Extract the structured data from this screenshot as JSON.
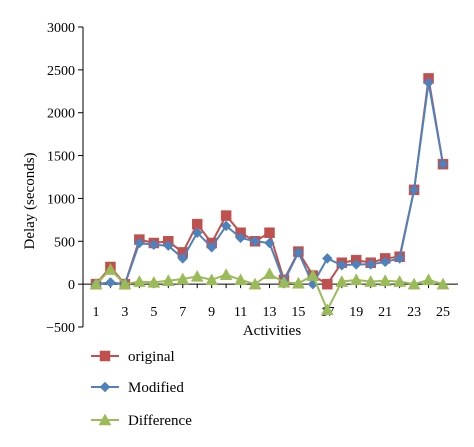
{
  "chart_data": {
    "type": "line",
    "title": "",
    "xlabel": "Activities",
    "ylabel": "Delay (seconds)",
    "x": [
      1,
      2,
      3,
      4,
      5,
      6,
      7,
      8,
      9,
      10,
      11,
      12,
      13,
      14,
      15,
      16,
      17,
      18,
      19,
      20,
      21,
      22,
      23,
      24,
      25
    ],
    "xticks": [
      "1",
      "3",
      "5",
      "7",
      "9",
      "11",
      "13",
      "15",
      "17",
      "19",
      "21",
      "23",
      "25"
    ],
    "ylim": [
      -500,
      3000
    ],
    "yticks": [
      "−500",
      "0",
      "500",
      "1000",
      "1500",
      "2000",
      "2500",
      "3000"
    ],
    "grid": false,
    "legend_position": "bottom-left",
    "series": [
      {
        "name": "original",
        "color": "#c0504d",
        "marker": "square",
        "values": [
          0,
          200,
          0,
          520,
          480,
          500,
          370,
          700,
          480,
          800,
          600,
          500,
          600,
          50,
          380,
          100,
          0,
          250,
          280,
          250,
          300,
          320,
          1100,
          2400,
          1400
        ]
      },
      {
        "name": "Modified",
        "color": "#4f81bd",
        "marker": "diamond",
        "values": [
          0,
          20,
          0,
          480,
          460,
          450,
          300,
          600,
          430,
          680,
          540,
          500,
          480,
          30,
          370,
          0,
          300,
          220,
          230,
          230,
          260,
          300,
          1100,
          2350,
          1400
        ]
      },
      {
        "name": "Difference",
        "color": "#9bbb59",
        "marker": "triangle",
        "values": [
          0,
          170,
          0,
          30,
          20,
          40,
          60,
          90,
          50,
          110,
          50,
          0,
          120,
          20,
          10,
          100,
          -300,
          30,
          50,
          30,
          40,
          30,
          0,
          50,
          0
        ]
      }
    ]
  }
}
